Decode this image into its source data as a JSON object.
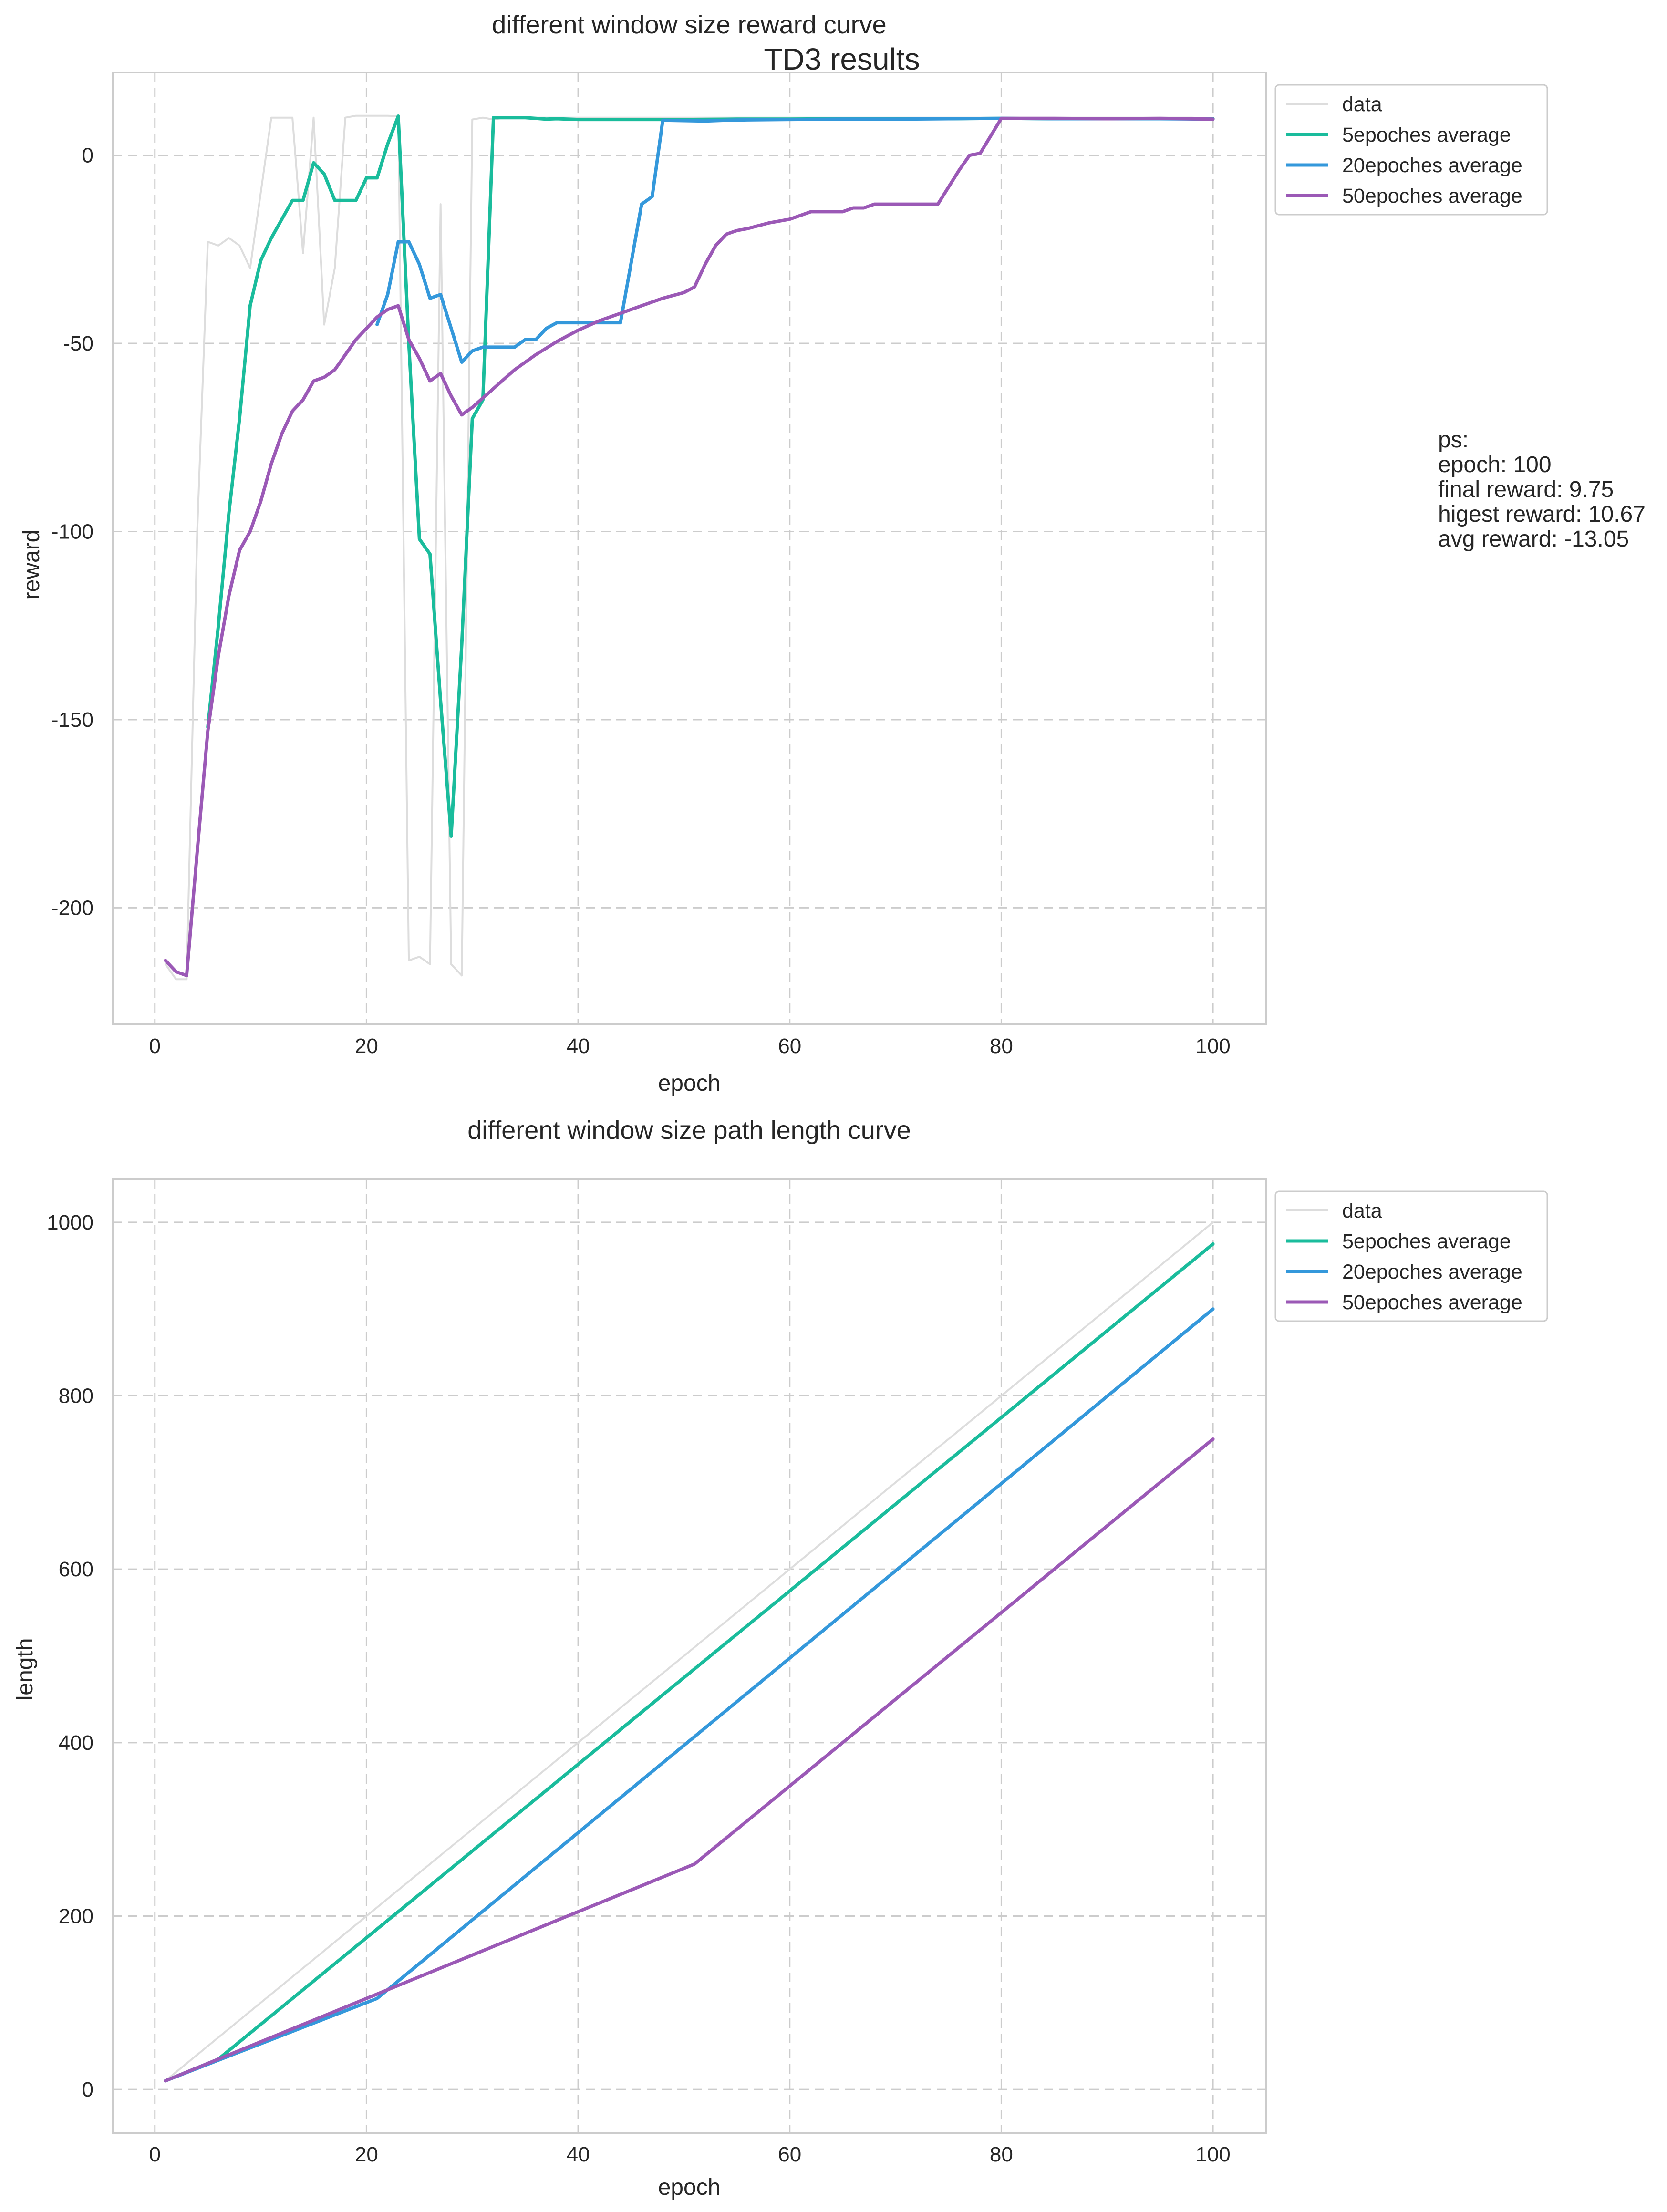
{
  "figure_title": "TD3 results",
  "annotation_lines": [
    "ps:",
    "epoch: 100",
    "final reward: 9.75",
    "higest reward: 10.67",
    "avg reward: -13.05"
  ],
  "colors": {
    "data": "#dddddd",
    "w5": "#1abc9c",
    "w20": "#3498db",
    "w50": "#9b59b6"
  },
  "chart_data": [
    {
      "type": "line",
      "title": "different window size reward curve",
      "xlabel": "epoch",
      "ylabel": "reward",
      "xlim": [
        -4,
        105
      ],
      "ylim": [
        -231,
        22
      ],
      "xticks": [
        0,
        20,
        40,
        60,
        80,
        100
      ],
      "yticks": [
        0,
        -50,
        -100,
        -150,
        -200
      ],
      "grid": true,
      "legend": "upper right, outside plot",
      "series": [
        {
          "name": "data",
          "color": "#dddddd",
          "width": 4,
          "x": [
            1,
            2,
            3,
            4,
            5,
            6,
            7,
            8,
            9,
            10,
            11,
            12,
            13,
            14,
            15,
            16,
            17,
            18,
            19,
            20,
            21,
            22,
            23,
            24,
            25,
            26,
            27,
            28,
            29,
            30,
            31,
            32,
            33,
            34,
            35,
            36,
            37,
            38,
            39,
            40,
            42,
            44,
            46,
            48,
            50,
            52,
            54,
            56,
            58,
            60,
            62,
            64,
            66,
            68,
            70,
            72,
            74,
            76,
            78,
            80,
            82,
            84,
            86,
            88,
            90,
            92,
            94,
            96,
            98,
            100
          ],
          "y": [
            -215,
            -219,
            -219,
            -100,
            -23,
            -24,
            -22,
            -24,
            -30,
            -10,
            10,
            10,
            10,
            -26,
            10,
            -45,
            -30,
            10,
            10.5,
            10.5,
            10.5,
            10.5,
            10.4,
            -214,
            -213,
            -215,
            -13,
            -215,
            -218,
            9.5,
            10,
            9.5,
            10,
            10,
            10,
            10,
            10,
            10,
            10,
            10,
            10,
            10,
            10,
            10,
            10,
            10,
            10,
            10,
            10,
            10,
            10,
            10,
            10,
            10,
            10,
            10,
            10,
            10,
            10,
            10,
            10,
            10,
            10,
            10,
            10,
            10,
            10,
            10,
            10,
            9.75
          ]
        },
        {
          "name": "5epoches average",
          "color": "#1abc9c",
          "width": 7,
          "x": [
            5,
            6,
            7,
            8,
            9,
            10,
            11,
            12,
            13,
            14,
            15,
            16,
            17,
            18,
            19,
            20,
            21,
            22,
            23,
            24,
            25,
            26,
            27,
            28,
            29,
            30,
            31,
            32,
            33,
            34,
            35,
            36,
            37,
            38,
            40,
            45,
            50,
            55,
            60,
            65,
            70,
            75,
            80,
            85,
            90,
            95,
            100
          ],
          "y": [
            -152,
            -125,
            -95,
            -70,
            -40,
            -28,
            -22,
            -17,
            -12,
            -12,
            -2,
            -5,
            -12,
            -12,
            -12,
            -6,
            -6,
            3,
            10.4,
            -50,
            -102,
            -106,
            -145,
            -181,
            -130,
            -70,
            -65,
            10,
            10,
            10,
            10,
            9.8,
            9.6,
            9.7,
            9.5,
            9.5,
            9.5,
            9.6,
            9.6,
            9.7,
            9.7,
            9.7,
            9.8,
            9.7,
            9.7,
            9.7,
            9.75
          ]
        },
        {
          "name": "20epoches average",
          "color": "#3498db",
          "width": 7,
          "x": [
            21,
            22,
            23,
            24,
            25,
            26,
            27,
            28,
            29,
            30,
            31,
            32,
            33,
            34,
            35,
            36,
            37,
            38,
            39,
            40,
            41,
            42,
            43,
            44,
            46,
            47,
            48,
            50,
            52,
            54,
            56,
            60,
            65,
            70,
            75,
            80,
            85,
            90,
            95,
            100
          ],
          "y": [
            -45,
            -37,
            -23,
            -23,
            -29,
            -38,
            -37,
            -46,
            -55,
            -52,
            -51,
            -51,
            -51,
            -51,
            -49,
            -49,
            -46,
            -44.5,
            -44.5,
            -44.5,
            -44.5,
            -44.5,
            -44.5,
            -44.5,
            -13,
            -11,
            9.3,
            9.2,
            9.1,
            9.3,
            9.4,
            9.5,
            9.6,
            9.6,
            9.7,
            9.8,
            9.7,
            9.7,
            9.7,
            9.6
          ]
        },
        {
          "name": "50epoches average",
          "color": "#9b59b6",
          "width": 7,
          "x": [
            1,
            2,
            3,
            4,
            5,
            6,
            7,
            8,
            9,
            10,
            11,
            12,
            13,
            14,
            15,
            16,
            17,
            18,
            19,
            20,
            21,
            22,
            23,
            24,
            25,
            26,
            27,
            28,
            29,
            30,
            32,
            34,
            36,
            38,
            40,
            42,
            44,
            46,
            48,
            50,
            51,
            52,
            53,
            54,
            55,
            56,
            58,
            60,
            61,
            62,
            64,
            65,
            66,
            67,
            68,
            70,
            72,
            74,
            76,
            77,
            78,
            80,
            85,
            90,
            95,
            100
          ],
          "y": [
            -214,
            -217,
            -218,
            -185,
            -153,
            -133,
            -117,
            -105,
            -100,
            -92,
            -82,
            -74,
            -68,
            -65,
            -60,
            -59,
            -57,
            -53,
            -49,
            -46,
            -43,
            -41,
            -40,
            -49,
            -54,
            -60,
            -58,
            -64,
            -69,
            -67,
            -62,
            -57,
            -53,
            -49.5,
            -46.5,
            -44,
            -42,
            -40,
            -38,
            -36.5,
            -35,
            -29,
            -24,
            -21,
            -20,
            -19.5,
            -18,
            -17,
            -16,
            -15,
            -15,
            -15,
            -14,
            -14,
            -13,
            -13,
            -13,
            -13,
            -4,
            0,
            0.5,
            9.8,
            9.8,
            9.7,
            9.8,
            9.6
          ]
        }
      ]
    },
    {
      "type": "line",
      "title": "different window size path length curve",
      "xlabel": "epoch",
      "ylabel": "length",
      "xlim": [
        -4,
        105
      ],
      "ylim": [
        -50,
        1050
      ],
      "xticks": [
        0,
        20,
        40,
        60,
        80,
        100
      ],
      "yticks": [
        0,
        200,
        400,
        600,
        800,
        1000
      ],
      "grid": true,
      "legend": "upper right, outside plot",
      "series": [
        {
          "name": "data",
          "color": "#dddddd",
          "width": 4,
          "x": [
            1,
            100
          ],
          "y": [
            10,
            1000
          ]
        },
        {
          "name": "5epoches average",
          "color": "#1abc9c",
          "width": 7,
          "x": [
            1,
            6,
            100
          ],
          "y": [
            10,
            35,
            975
          ]
        },
        {
          "name": "20epoches average",
          "color": "#3498db",
          "width": 7,
          "x": [
            1,
            21,
            100
          ],
          "y": [
            10,
            105,
            900
          ]
        },
        {
          "name": "50epoches average",
          "color": "#9b59b6",
          "width": 7,
          "x": [
            1,
            51,
            100
          ],
          "y": [
            10,
            260,
            750
          ]
        }
      ]
    }
  ]
}
